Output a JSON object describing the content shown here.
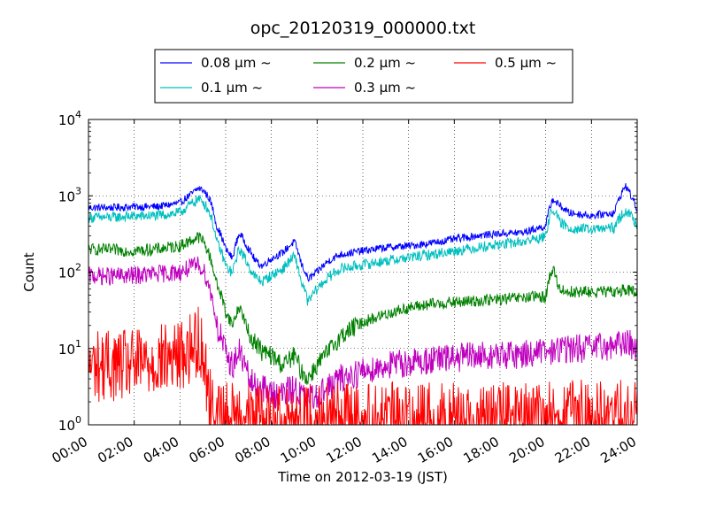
{
  "chart_data": {
    "type": "line",
    "title": "opc_20120319_000000.txt",
    "xlabel": "Time on 2012-03-19 (JST)",
    "ylabel": "Count",
    "x_unit": "hours",
    "xlim": [
      0,
      24
    ],
    "ylim": [
      1,
      10000
    ],
    "yscale": "log",
    "grid": true,
    "legend_placement": "top-center",
    "x_ticks": [
      {
        "value": 0,
        "label": "00:00"
      },
      {
        "value": 2,
        "label": "02:00"
      },
      {
        "value": 4,
        "label": "04:00"
      },
      {
        "value": 6,
        "label": "06:00"
      },
      {
        "value": 8,
        "label": "08:00"
      },
      {
        "value": 10,
        "label": "10:00"
      },
      {
        "value": 12,
        "label": "12:00"
      },
      {
        "value": 14,
        "label": "14:00"
      },
      {
        "value": 16,
        "label": "16:00"
      },
      {
        "value": 18,
        "label": "18:00"
      },
      {
        "value": 20,
        "label": "20:00"
      },
      {
        "value": 22,
        "label": "22:00"
      },
      {
        "value": 24,
        "label": "24:00"
      }
    ],
    "y_ticks": [
      {
        "value": 1,
        "base": "10",
        "exp": "0"
      },
      {
        "value": 10,
        "base": "10",
        "exp": "1"
      },
      {
        "value": 100,
        "base": "10",
        "exp": "2"
      },
      {
        "value": 1000,
        "base": "10",
        "exp": "3"
      },
      {
        "value": 10000,
        "base": "10",
        "exp": "4"
      }
    ],
    "series": [
      {
        "name": "0.08 μm ~",
        "color": "#0000ff",
        "x": [
          0,
          1,
          2,
          3,
          4,
          4.5,
          4.8,
          5.0,
          5.3,
          5.6,
          6.0,
          6.3,
          6.6,
          7.0,
          7.3,
          7.6,
          8.0,
          8.5,
          9.0,
          9.3,
          9.6,
          10.0,
          10.5,
          11,
          12,
          13,
          14,
          15,
          16,
          17,
          18,
          19,
          20,
          20.3,
          20.6,
          21,
          22,
          23,
          23.5,
          23.8,
          24
        ],
        "values": [
          700,
          700,
          720,
          720,
          800,
          1050,
          1250,
          1200,
          900,
          400,
          200,
          150,
          320,
          200,
          140,
          120,
          150,
          180,
          250,
          130,
          80,
          100,
          140,
          170,
          190,
          210,
          220,
          240,
          270,
          300,
          320,
          330,
          400,
          900,
          750,
          600,
          550,
          600,
          1350,
          900,
          650
        ]
      },
      {
        "name": "0.1 μm ~",
        "color": "#00bfbf",
        "x": [
          0,
          1,
          2,
          3,
          4,
          4.5,
          4.8,
          5.0,
          5.3,
          5.6,
          6.0,
          6.3,
          6.6,
          7.0,
          7.3,
          7.6,
          8.0,
          8.5,
          9.0,
          9.3,
          9.6,
          10.0,
          10.5,
          11,
          12,
          13,
          14,
          15,
          16,
          17,
          18,
          19,
          20,
          20.3,
          20.6,
          21,
          22,
          23,
          23.5,
          23.8,
          24
        ],
        "values": [
          520,
          520,
          540,
          550,
          600,
          780,
          900,
          850,
          600,
          250,
          120,
          95,
          200,
          120,
          85,
          75,
          90,
          110,
          160,
          75,
          40,
          60,
          85,
          110,
          125,
          140,
          155,
          170,
          190,
          210,
          230,
          250,
          290,
          700,
          450,
          380,
          360,
          380,
          650,
          500,
          420
        ]
      },
      {
        "name": "0.2 μm ~",
        "color": "#008000",
        "x": [
          0,
          1,
          2,
          3,
          4,
          4.5,
          4.8,
          5.0,
          5.3,
          5.6,
          6.0,
          6.3,
          6.6,
          7.0,
          7.3,
          7.6,
          8.0,
          8.5,
          9.0,
          9.3,
          9.6,
          10.0,
          10.5,
          11,
          12,
          13,
          14,
          15,
          16,
          17,
          18,
          19,
          20,
          20.3,
          20.6,
          21,
          22,
          23,
          23.5,
          23.8,
          24
        ],
        "values": [
          200,
          195,
          190,
          200,
          220,
          260,
          290,
          260,
          160,
          70,
          30,
          20,
          35,
          15,
          12,
          9,
          8,
          6,
          8,
          5,
          4,
          6,
          9,
          14,
          22,
          28,
          34,
          38,
          40,
          42,
          44,
          46,
          48,
          110,
          60,
          55,
          55,
          55,
          60,
          55,
          50
        ]
      },
      {
        "name": "0.3 μm ~",
        "color": "#bf00bf",
        "x": [
          0,
          1,
          2,
          3,
          4,
          4.5,
          4.8,
          5.0,
          5.3,
          5.6,
          6.0,
          6.3,
          6.6,
          7.0,
          7.3,
          7.6,
          8.0,
          8.5,
          9.0,
          9.3,
          9.6,
          10.0,
          10.5,
          11,
          12,
          13,
          14,
          15,
          16,
          17,
          18,
          19,
          20,
          20.3,
          20.6,
          21,
          22,
          23,
          23.5,
          23.8,
          24
        ],
        "values": [
          90,
          88,
          90,
          95,
          100,
          115,
          125,
          110,
          60,
          20,
          8,
          6,
          9,
          4,
          3,
          3,
          2.5,
          2.5,
          3,
          2.5,
          2,
          2.5,
          3,
          4,
          5,
          6,
          6.5,
          7,
          7.5,
          8,
          8,
          8.5,
          9,
          9,
          10,
          10,
          10,
          11,
          12,
          11,
          10
        ]
      },
      {
        "name": "0.5 μm ~",
        "color": "#ff0000",
        "x": [
          0,
          1,
          2,
          3,
          4,
          4.5,
          4.8,
          5.0,
          5.2,
          5.4,
          5.6,
          6.0,
          7,
          8,
          9,
          10,
          11,
          12,
          13,
          14,
          15,
          16,
          17,
          18,
          19,
          20,
          21,
          22,
          23,
          24
        ],
        "values": [
          6,
          6,
          6,
          7,
          8,
          10,
          13,
          9,
          3,
          1.5,
          1.2,
          1.2,
          1.2,
          1.2,
          1.2,
          1.2,
          1.2,
          1.2,
          1.2,
          1.2,
          1.2,
          1.2,
          1.2,
          1.2,
          1.2,
          1.2,
          1.3,
          1.3,
          1.3,
          1.3
        ]
      }
    ]
  }
}
